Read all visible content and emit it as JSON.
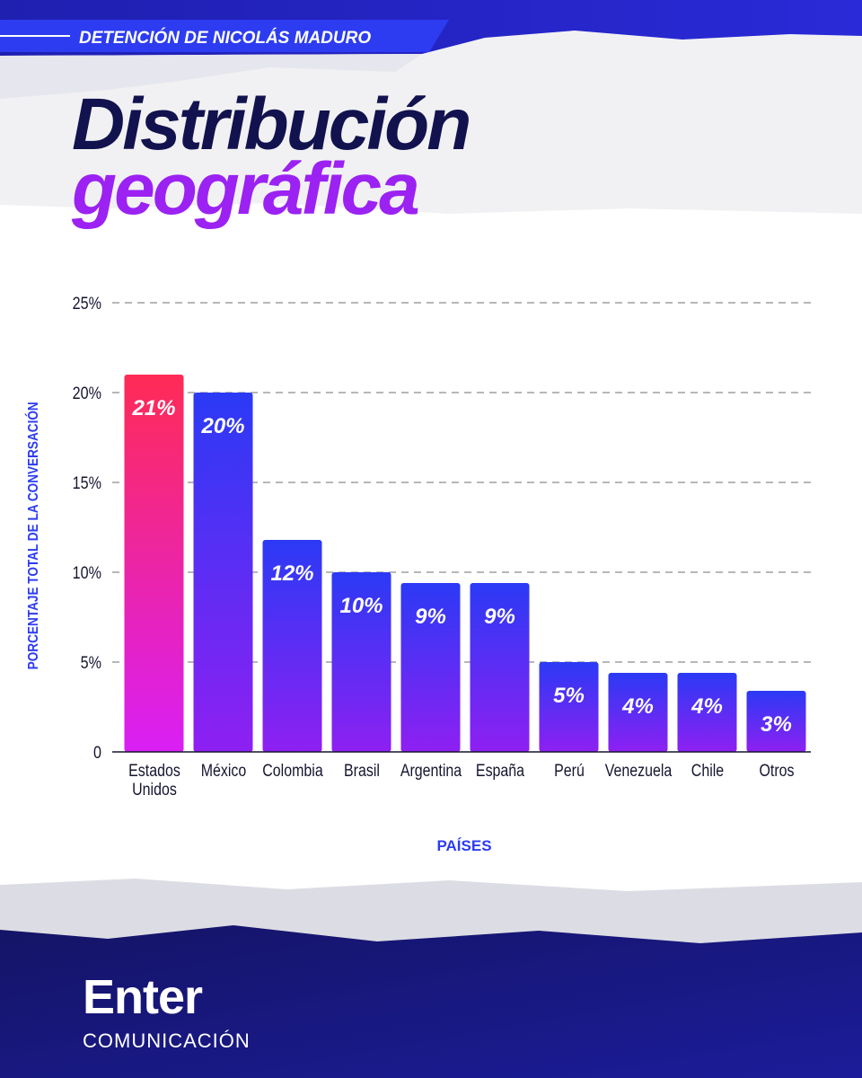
{
  "header": {
    "kicker": "DETENCIÓN DE NICOLÁS MADURO",
    "title_line1": "Distribución",
    "title_line2": "geográfica"
  },
  "chart_data": {
    "type": "bar",
    "categories": [
      "Estados Unidos",
      "México",
      "Colombia",
      "Brasil",
      "Argentina",
      "España",
      "Perú",
      "Venezuela",
      "Chile",
      "Otros"
    ],
    "values": [
      21,
      20,
      11.8,
      10,
      9.4,
      9.4,
      5,
      4.4,
      4.4,
      3.4
    ],
    "value_labels": [
      "21%",
      "20%",
      "12%",
      "10%",
      "9%",
      "9%",
      "5%",
      "4%",
      "4%",
      "3%"
    ],
    "colors": [
      "#ff2b55",
      "#2b3af5",
      "#2b3af5",
      "#2b3af5",
      "#2b3af5",
      "#2b3af5",
      "#2b3af5",
      "#2b3af5",
      "#2b3af5",
      "#2b3af5"
    ],
    "ylim": [
      0,
      25
    ],
    "yticks": [
      0,
      {
        "value": 5,
        "label": "5%"
      },
      {
        "value": 10,
        "label": "10%"
      },
      {
        "value": 15,
        "label": "15%"
      },
      {
        "value": 20,
        "label": "20%"
      },
      {
        "value": 25,
        "label": "25%"
      }
    ],
    "y_label": "PORCENTAJE TOTAL DE LA CONVERSACIÓN",
    "x_label": "PAÍSES",
    "grid": true
  },
  "footer": {
    "brand": "Enter",
    "brand_sub": "COMUNICACIÓN"
  }
}
